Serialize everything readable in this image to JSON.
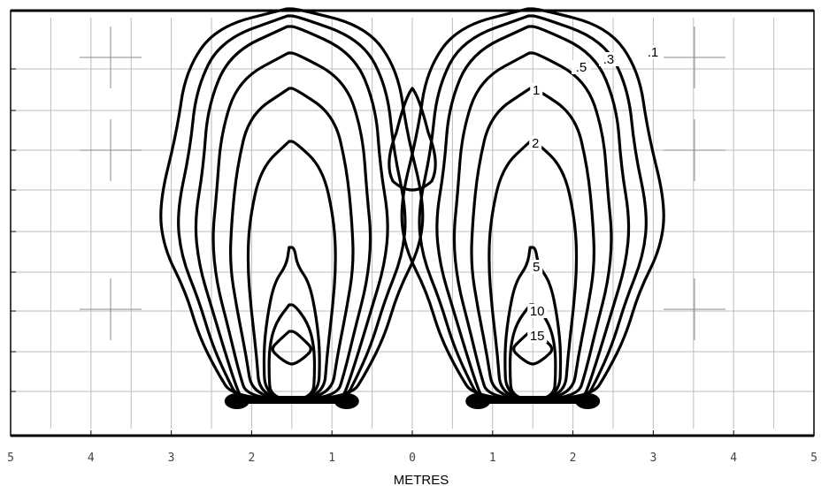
{
  "chart_data": {
    "type": "contour",
    "xlabel": "METRES",
    "x_tick_labels": [
      "5",
      "4",
      "3",
      "2",
      "1",
      "0",
      "1",
      "2",
      "3",
      "4",
      "5"
    ],
    "xlim": [
      -5,
      5
    ],
    "grid": true,
    "sources": [
      {
        "x": -1.5
      },
      {
        "x": 1.5
      }
    ],
    "contour_levels": [
      ".1",
      ".3",
      ".5",
      "1",
      "2",
      "5",
      "10",
      "15"
    ],
    "labelled_levels": [
      ".5",
      ".3",
      ".1",
      "1",
      "2",
      "5",
      "10",
      "15"
    ]
  }
}
